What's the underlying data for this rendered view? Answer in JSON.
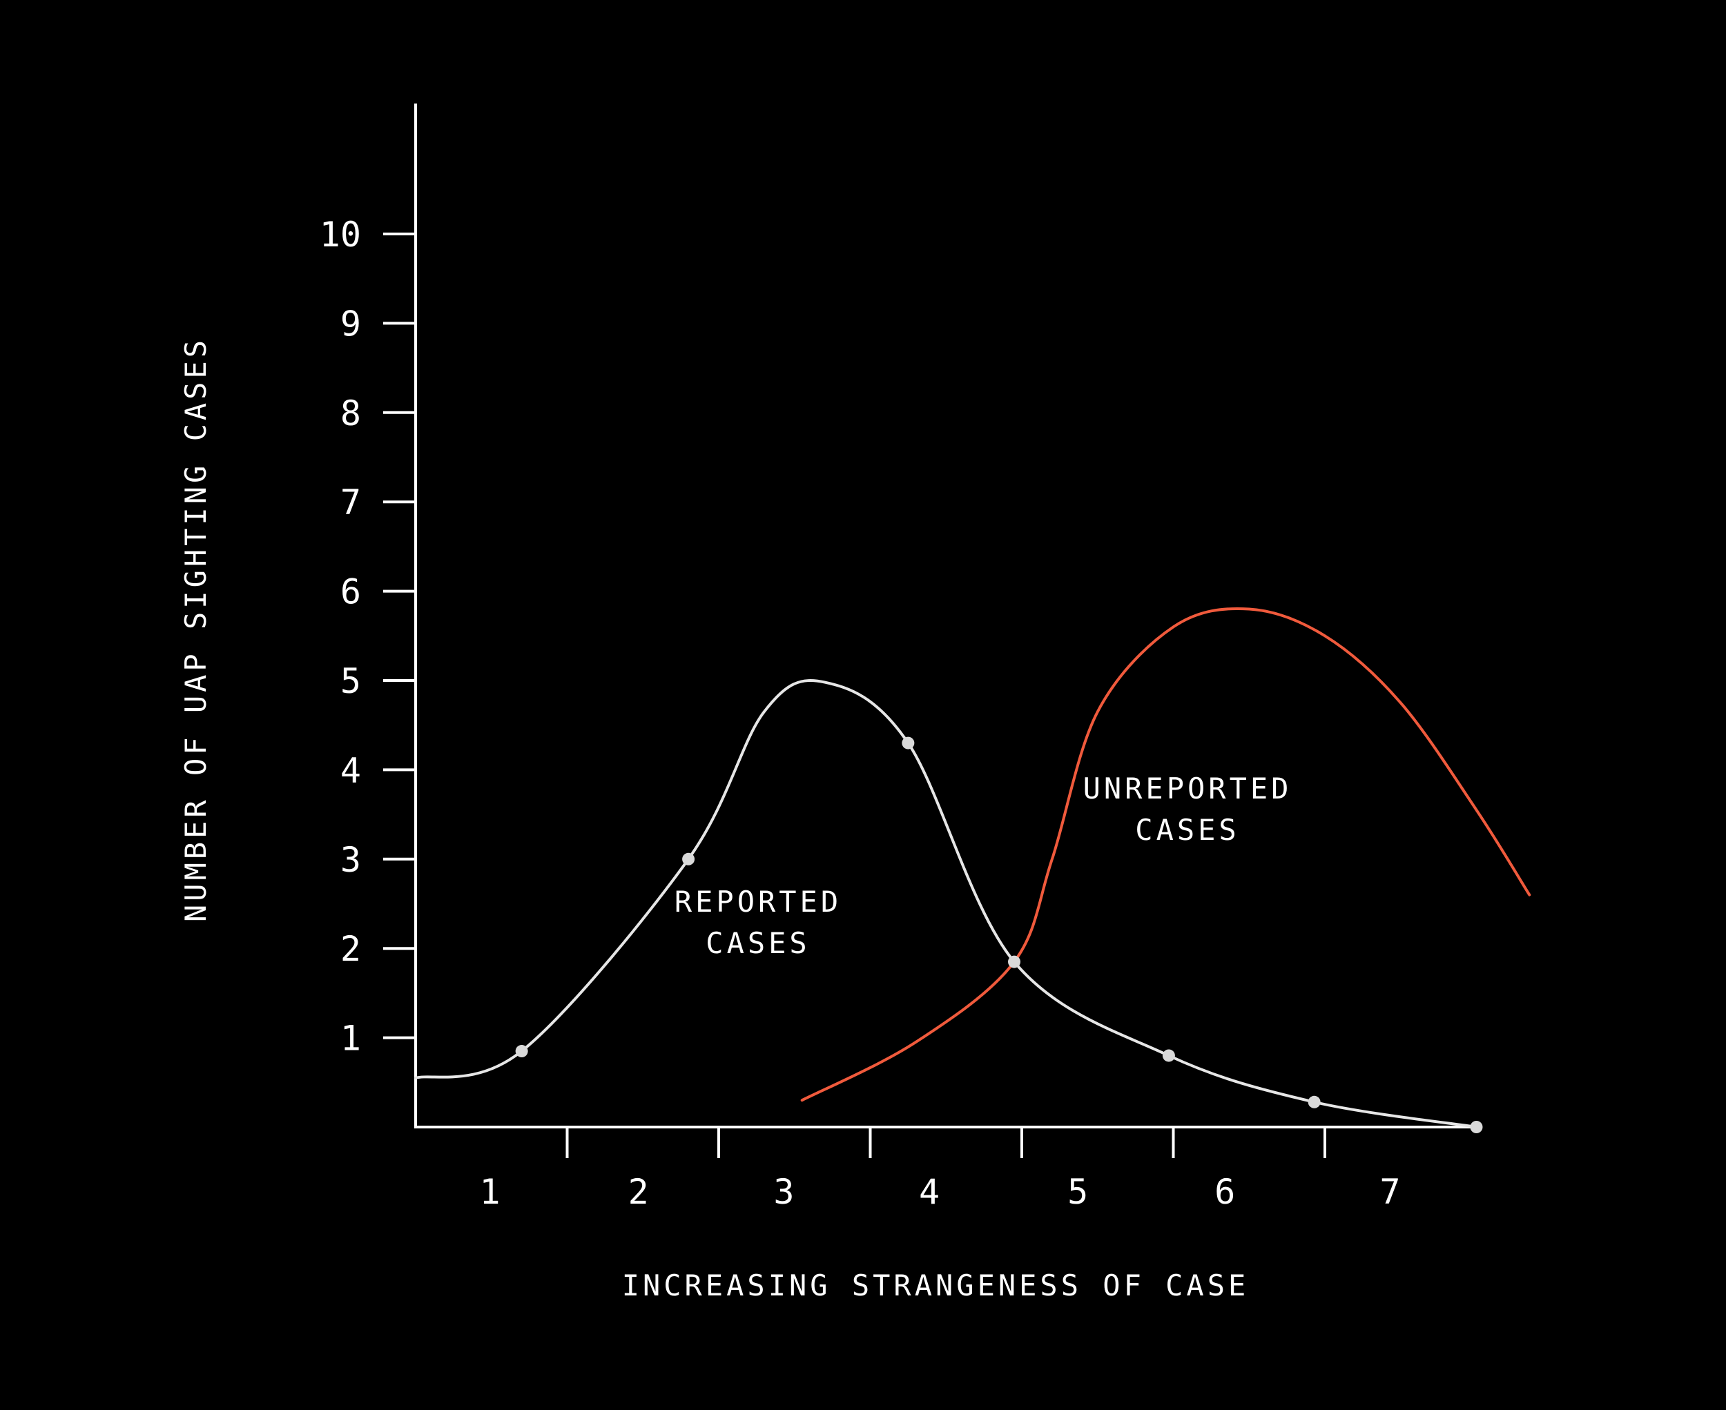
{
  "chart_data": {
    "type": "line",
    "xlabel": "INCREASING STRANGENESS OF CASE",
    "ylabel": "NUMBER OF UAP SIGHTING CASES",
    "x_tick_labels": [
      "1",
      "2",
      "3",
      "4",
      "5",
      "6",
      "7"
    ],
    "y_tick_labels": [
      "1",
      "2",
      "3",
      "4",
      "5",
      "6",
      "7",
      "8",
      "9",
      "10"
    ],
    "ylim": [
      0,
      11.4
    ],
    "grid": false,
    "annotations": [
      {
        "lines": [
          "REPORTED",
          "CASES"
        ]
      },
      {
        "lines": [
          "UNREPORTED",
          "CASES"
        ]
      }
    ],
    "series": [
      {
        "key": "reported",
        "color": "#e6e6e6",
        "marker_points": [
          {
            "x": 0.7,
            "y": 0.85
          },
          {
            "x": 1.8,
            "y": 3.0
          },
          {
            "x": 3.25,
            "y": 4.3
          },
          {
            "x": 3.95,
            "y": 1.85
          },
          {
            "x": 4.97,
            "y": 0.8
          },
          {
            "x": 5.93,
            "y": 0.28
          },
          {
            "x": 7.0,
            "y": 0.0
          }
        ],
        "curve_points": [
          {
            "x": 0.0,
            "y": 0.55
          },
          {
            "x": 0.7,
            "y": 0.85
          },
          {
            "x": 1.8,
            "y": 3.0
          },
          {
            "x": 2.3,
            "y": 4.65
          },
          {
            "x": 2.7,
            "y": 4.98
          },
          {
            "x": 3.25,
            "y": 4.3
          },
          {
            "x": 3.95,
            "y": 1.85
          },
          {
            "x": 4.97,
            "y": 0.8
          },
          {
            "x": 5.93,
            "y": 0.28
          },
          {
            "x": 7.0,
            "y": 0.0
          }
        ]
      },
      {
        "key": "unreported",
        "color": "#f05a3c",
        "marker_points": [],
        "curve_points": [
          {
            "x": 2.55,
            "y": 0.3
          },
          {
            "x": 3.3,
            "y": 0.95
          },
          {
            "x": 3.95,
            "y": 1.85
          },
          {
            "x": 4.2,
            "y": 3.0
          },
          {
            "x": 4.5,
            "y": 4.65
          },
          {
            "x": 5.0,
            "y": 5.6
          },
          {
            "x": 5.5,
            "y": 5.8
          },
          {
            "x": 6.0,
            "y": 5.5
          },
          {
            "x": 6.5,
            "y": 4.75
          },
          {
            "x": 7.0,
            "y": 3.55
          },
          {
            "x": 7.35,
            "y": 2.6
          }
        ]
      }
    ]
  }
}
